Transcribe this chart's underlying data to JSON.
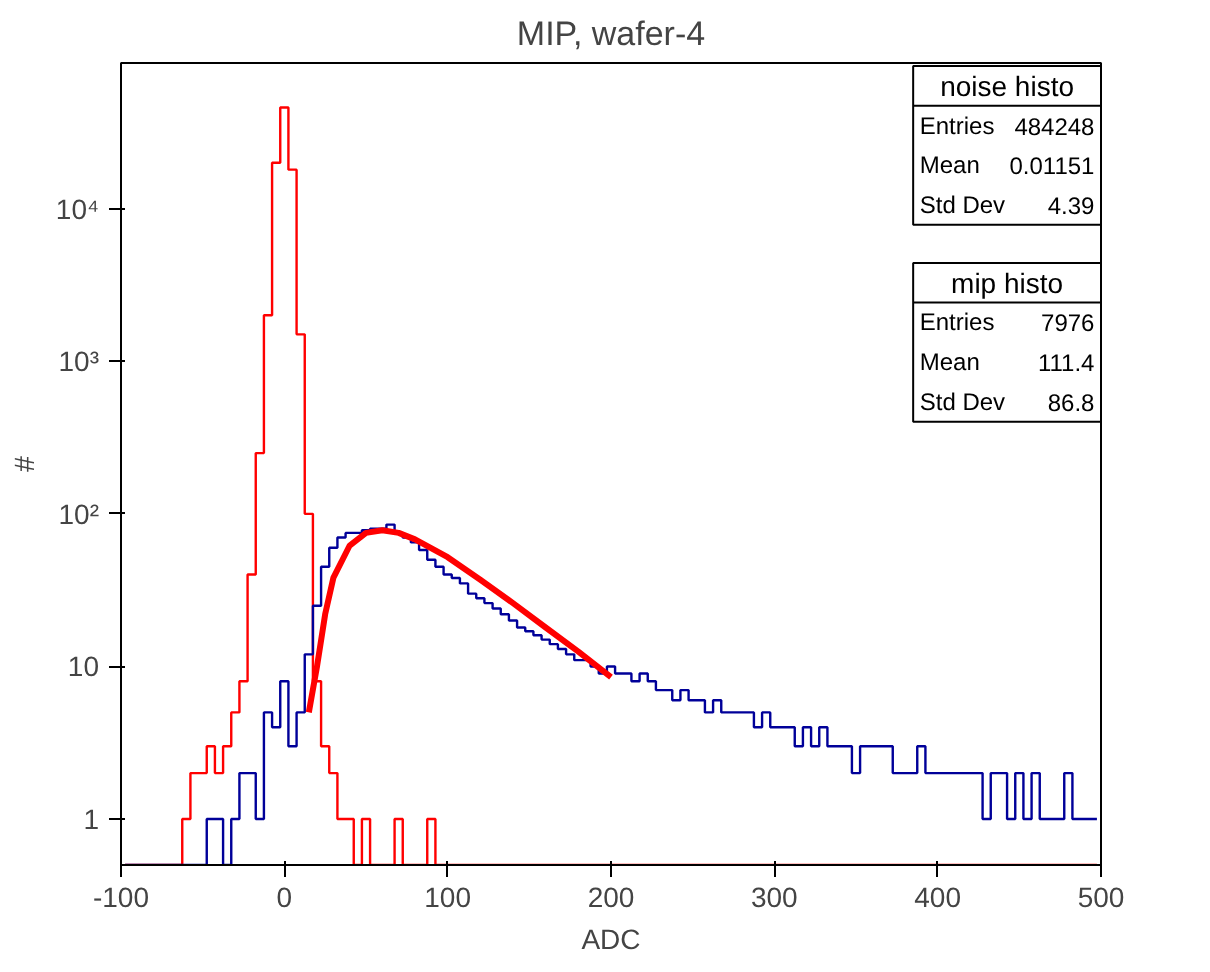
{
  "chart_data": {
    "type": "histogram",
    "title": "MIP, wafer-4",
    "xlabel": "ADC",
    "ylabel": "#",
    "bins": [
      -97.5,
      -92.5,
      -87.5,
      -82.5,
      -77.5,
      -72.5,
      -67.5,
      -62.5,
      -57.5,
      -52.5,
      -47.5,
      -42.5,
      -37.5,
      -32.5,
      -27.5,
      -22.5,
      -17.5,
      -12.5,
      -7.5,
      -2.5,
      2.5,
      7.5,
      12.5,
      17.5,
      22.5,
      27.5,
      32.5,
      37.5,
      42.5,
      47.5,
      52.5,
      57.5,
      62.5,
      67.5,
      72.5,
      77.5,
      82.5,
      87.5,
      92.5,
      97.5,
      102.5,
      107.5,
      112.5,
      117.5,
      122.5,
      127.5,
      132.5,
      137.5,
      142.5,
      147.5,
      152.5,
      157.5,
      162.5,
      167.5,
      172.5,
      177.5,
      182.5,
      187.5,
      192.5,
      197.5,
      202.5,
      207.5,
      212.5,
      217.5,
      222.5,
      227.5,
      232.5,
      237.5,
      242.5,
      247.5,
      252.5,
      257.5,
      262.5,
      267.5,
      272.5,
      277.5,
      282.5,
      287.5,
      292.5,
      297.5,
      302.5,
      307.5,
      312.5,
      317.5,
      322.5,
      327.5,
      332.5,
      337.5,
      342.5,
      347.5,
      352.5,
      357.5,
      362.5,
      367.5,
      372.5,
      377.5,
      382.5,
      387.5,
      392.5,
      397.5,
      402.5,
      407.5,
      412.5,
      417.5,
      422.5,
      427.5,
      432.5,
      437.5,
      442.5,
      447.5,
      452.5,
      457.5,
      462.5,
      467.5,
      472.5,
      477.5,
      482.5,
      487.5,
      492.5,
      497.5
    ],
    "series": [
      {
        "color": "#ff0000",
        "values": [
          null,
          null,
          null,
          null,
          null,
          null,
          null,
          1,
          2,
          2,
          3,
          2,
          3,
          5,
          8,
          40,
          250,
          2000,
          20000,
          46000,
          18000,
          1500,
          100,
          8,
          3,
          2,
          1,
          1,
          null,
          1,
          null,
          null,
          null,
          1,
          null,
          null,
          null,
          1,
          null,
          null,
          null,
          null,
          null,
          null,
          null,
          null,
          null,
          null,
          null,
          null,
          null,
          null,
          null,
          null,
          null,
          null,
          null,
          null,
          null,
          null,
          null,
          null,
          null,
          null,
          null,
          null,
          null,
          null,
          null,
          null,
          null,
          null,
          null,
          null,
          null,
          null,
          null,
          null,
          null,
          null,
          null,
          null,
          null,
          null,
          null,
          null,
          null,
          null,
          null,
          null,
          null,
          null,
          null,
          null,
          null,
          null,
          null,
          null,
          null,
          null,
          null,
          null,
          null,
          null,
          null,
          null,
          null,
          null,
          null,
          null,
          null,
          null,
          null,
          null,
          null,
          null,
          null,
          null,
          null
        ]
      },
      {
        "color": "#000099",
        "values": [
          null,
          null,
          null,
          null,
          null,
          null,
          null,
          null,
          null,
          null,
          1,
          1,
          null,
          1,
          2,
          2,
          1,
          5,
          4,
          8,
          3,
          5,
          12,
          25,
          45,
          60,
          70,
          75,
          75,
          78,
          80,
          80,
          85,
          75,
          70,
          65,
          58,
          50,
          45,
          40,
          38,
          35,
          30,
          28,
          26,
          24,
          22,
          20,
          18,
          17,
          16,
          15,
          14,
          13,
          12,
          11,
          11,
          10,
          9,
          10,
          9,
          9,
          8,
          9,
          8,
          7,
          7,
          6,
          7,
          6,
          6,
          5,
          6,
          5,
          5,
          5,
          5,
          4,
          5,
          4,
          4,
          4,
          3,
          4,
          3,
          4,
          3,
          3,
          3,
          2,
          3,
          3,
          3,
          3,
          2,
          2,
          2,
          3,
          2,
          2,
          2,
          2,
          2,
          2,
          2,
          1,
          2,
          2,
          1,
          2,
          1,
          2,
          1,
          1,
          1,
          2,
          1,
          1,
          1
        ]
      },
      {
        "type": "line",
        "color": "#ff0000",
        "x": [
          15,
          20,
          25,
          30,
          40,
          50,
          60,
          70,
          80,
          100,
          120,
          140,
          160,
          180,
          200
        ],
        "values": [
          5,
          10,
          22,
          38,
          62,
          75,
          78,
          75,
          68,
          52,
          37,
          26,
          18,
          12.5,
          8.5
        ]
      }
    ],
    "xlim": [
      -100,
      500
    ],
    "ylim": [
      0.5,
      90000
    ],
    "xticks": [
      -100,
      0,
      100,
      200,
      300,
      400,
      500
    ],
    "yticks": [
      1,
      10,
      {
        "value": 100,
        "label": "10²"
      },
      {
        "value": 1000,
        "label": "10³"
      },
      {
        "value": 10000,
        "label": "10⁴"
      }
    ],
    "log": "y",
    "grid": false,
    "annotations": [
      "noise histo",
      "Entries",
      "484248",
      "Mean",
      "0.01151",
      "Std Dev",
      "4.39",
      "mip histo",
      "Entries",
      "7976",
      "Mean",
      "111.4",
      "Std Dev",
      "86.8"
    ]
  }
}
